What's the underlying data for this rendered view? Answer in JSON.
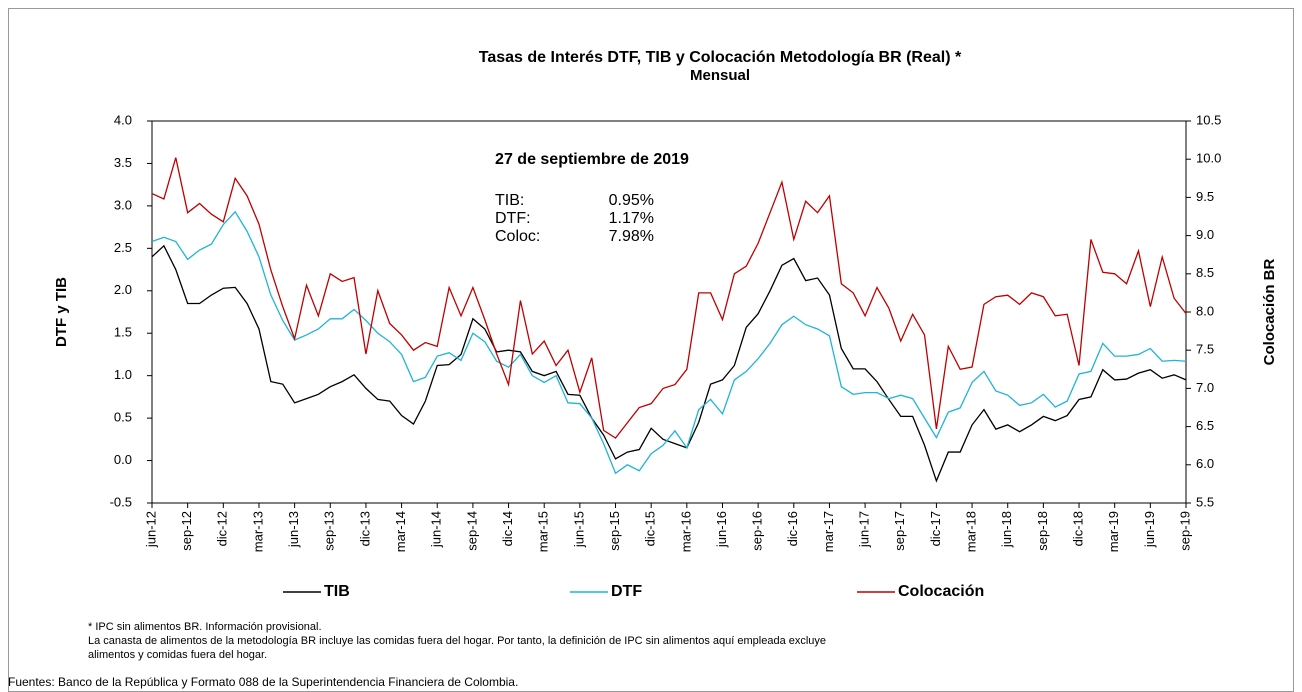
{
  "chart_data": {
    "type": "line",
    "title": "Tasas de Interés  DTF,  TIB  y Colocación Metodología BR  (Real) *",
    "subtitle": "Mensual",
    "y_label": "DTF  y  TIB",
    "y2_label": "Colocación  BR",
    "categories": [
      "jun-12",
      null,
      null,
      "sep-12",
      null,
      null,
      "dic-12",
      null,
      null,
      "mar-13",
      null,
      null,
      "jun-13",
      null,
      null,
      "sep-13",
      null,
      null,
      "dic-13",
      null,
      null,
      "mar-14",
      null,
      null,
      "jun-14",
      null,
      null,
      "sep-14",
      null,
      null,
      "dic-14",
      null,
      null,
      "mar-15",
      null,
      null,
      "jun-15",
      null,
      null,
      "sep-15",
      null,
      null,
      "dic-15",
      null,
      null,
      "mar-16",
      null,
      null,
      "jun-16",
      null,
      null,
      "sep-16",
      null,
      null,
      "dic-16",
      null,
      null,
      "mar-17",
      null,
      null,
      "jun-17",
      null,
      null,
      "sep-17",
      null,
      null,
      "dic-17",
      null,
      null,
      "mar-18",
      null,
      null,
      "jun-18",
      null,
      null,
      "sep-18",
      null,
      null,
      "dic-18",
      null,
      null,
      "mar-19",
      null,
      null,
      "jun-19",
      null,
      null,
      "sep-19"
    ],
    "series": [
      {
        "name": "TIB",
        "color": "#000000",
        "values": [
          2.4,
          2.53,
          2.25,
          1.85,
          1.85,
          1.95,
          2.03,
          2.04,
          1.85,
          1.55,
          0.93,
          0.9,
          0.68,
          0.73,
          0.78,
          0.87,
          0.93,
          1.01,
          0.85,
          0.72,
          0.7,
          0.53,
          0.43,
          0.7,
          1.12,
          1.13,
          1.25,
          1.67,
          1.55,
          1.28,
          1.3,
          1.28,
          1.05,
          1.0,
          1.05,
          0.78,
          0.77,
          0.5,
          0.3,
          0.02,
          0.1,
          0.13,
          0.38,
          0.25,
          0.2,
          0.15,
          0.45,
          0.9,
          0.95,
          1.12,
          1.57,
          1.73,
          2.0,
          2.3,
          2.38,
          2.12,
          2.15,
          1.95,
          1.32,
          1.08,
          1.08,
          0.93,
          0.72,
          0.52,
          0.52,
          0.18,
          -0.24,
          0.1,
          0.1,
          0.42,
          0.6,
          0.37,
          0.42,
          0.34,
          0.42,
          0.52,
          0.47,
          0.53,
          0.72,
          0.75,
          1.07,
          0.95,
          0.96,
          1.03,
          1.07,
          0.97,
          1.01,
          0.95
        ]
      },
      {
        "name": "DTF",
        "color": "#1fb4d8",
        "values": [
          2.58,
          2.63,
          2.58,
          2.37,
          2.48,
          2.55,
          2.78,
          2.93,
          2.7,
          2.4,
          1.95,
          1.65,
          1.42,
          1.48,
          1.55,
          1.67,
          1.67,
          1.78,
          1.65,
          1.5,
          1.4,
          1.25,
          0.93,
          0.98,
          1.23,
          1.27,
          1.18,
          1.5,
          1.4,
          1.17,
          1.1,
          1.25,
          1.0,
          0.92,
          1.0,
          0.68,
          0.67,
          0.5,
          0.2,
          -0.15,
          -0.05,
          -0.12,
          0.08,
          0.18,
          0.35,
          0.15,
          0.6,
          0.72,
          0.55,
          0.95,
          1.05,
          1.2,
          1.38,
          1.6,
          1.7,
          1.6,
          1.55,
          1.47,
          0.87,
          0.78,
          0.8,
          0.8,
          0.73,
          0.77,
          0.73,
          0.5,
          0.27,
          0.57,
          0.62,
          0.92,
          1.05,
          0.82,
          0.77,
          0.65,
          0.68,
          0.78,
          0.63,
          0.7,
          1.02,
          1.05,
          1.38,
          1.23,
          1.23,
          1.25,
          1.32,
          1.17,
          1.18,
          1.17
        ]
      },
      {
        "name": "Colocación",
        "color": "#c00000",
        "axis": "y2",
        "values": [
          9.55,
          9.48,
          10.02,
          9.3,
          9.42,
          9.28,
          9.18,
          9.75,
          9.52,
          9.15,
          8.55,
          8.07,
          7.65,
          8.35,
          7.95,
          8.5,
          8.4,
          8.45,
          7.45,
          8.28,
          7.85,
          7.7,
          7.5,
          7.6,
          7.55,
          8.32,
          7.95,
          8.32,
          7.9,
          7.45,
          7.05,
          8.15,
          7.45,
          7.62,
          7.3,
          7.5,
          6.95,
          7.4,
          6.45,
          6.35,
          6.55,
          6.75,
          6.8,
          7.0,
          7.05,
          7.25,
          8.25,
          8.25,
          7.9,
          8.5,
          8.6,
          8.9,
          9.3,
          9.7,
          8.95,
          9.45,
          9.3,
          9.52,
          8.37,
          8.25,
          7.95,
          8.32,
          8.05,
          7.62,
          7.97,
          7.7,
          6.47,
          7.55,
          7.25,
          7.28,
          8.1,
          8.2,
          8.22,
          8.1,
          8.25,
          8.2,
          7.95,
          7.97,
          7.3,
          8.95,
          8.52,
          8.5,
          8.37,
          8.8,
          8.07,
          8.72,
          8.18,
          7.98
        ]
      }
    ],
    "ylim": [
      -0.5,
      4.0
    ],
    "yticks": [
      -0.5,
      {
        "value": 0,
        "label": "0.0"
      },
      0.5,
      {
        "value": 1,
        "label": "1.0"
      },
      1.5,
      {
        "value": 2,
        "label": "2.0"
      },
      2.5,
      {
        "value": 3,
        "label": "3.0"
      },
      3.5,
      {
        "value": 4,
        "label": "4.0"
      }
    ],
    "y2lim": [
      5.5,
      10.5
    ],
    "y2ticks": [
      5.5,
      {
        "value": 6,
        "label": "6.0"
      },
      6.5,
      {
        "value": 7,
        "label": "7.0"
      },
      7.5,
      {
        "value": 8,
        "label": "8.0"
      },
      8.5,
      {
        "value": 9,
        "label": "9.0"
      },
      9.5,
      {
        "value": 10,
        "label": "10.0"
      },
      10.5
    ],
    "grid": false,
    "legend": "bottom",
    "annotation_title": "27 de septiembre de 2019",
    "annotations": [
      {
        "label": "TIB:",
        "text": "0.95%"
      },
      {
        "label": "DTF:",
        "text": "1.17%"
      },
      {
        "label": "Coloc:",
        "text": "7.98%"
      }
    ],
    "notes": [
      "* IPC  sin alimentos  BR.  Información provisional.",
      "La canasta de alimentos  de la metodología BR incluye las comidas fuera del hogar. Por tanto, la definición de IPC sin alimentos aquí empleada excluye",
      "alimentos  y comidas fuera del hogar."
    ],
    "source": "Fuentes: Banco de la República y Formato 088 de la Superintendencia Financiera de Colombia."
  }
}
